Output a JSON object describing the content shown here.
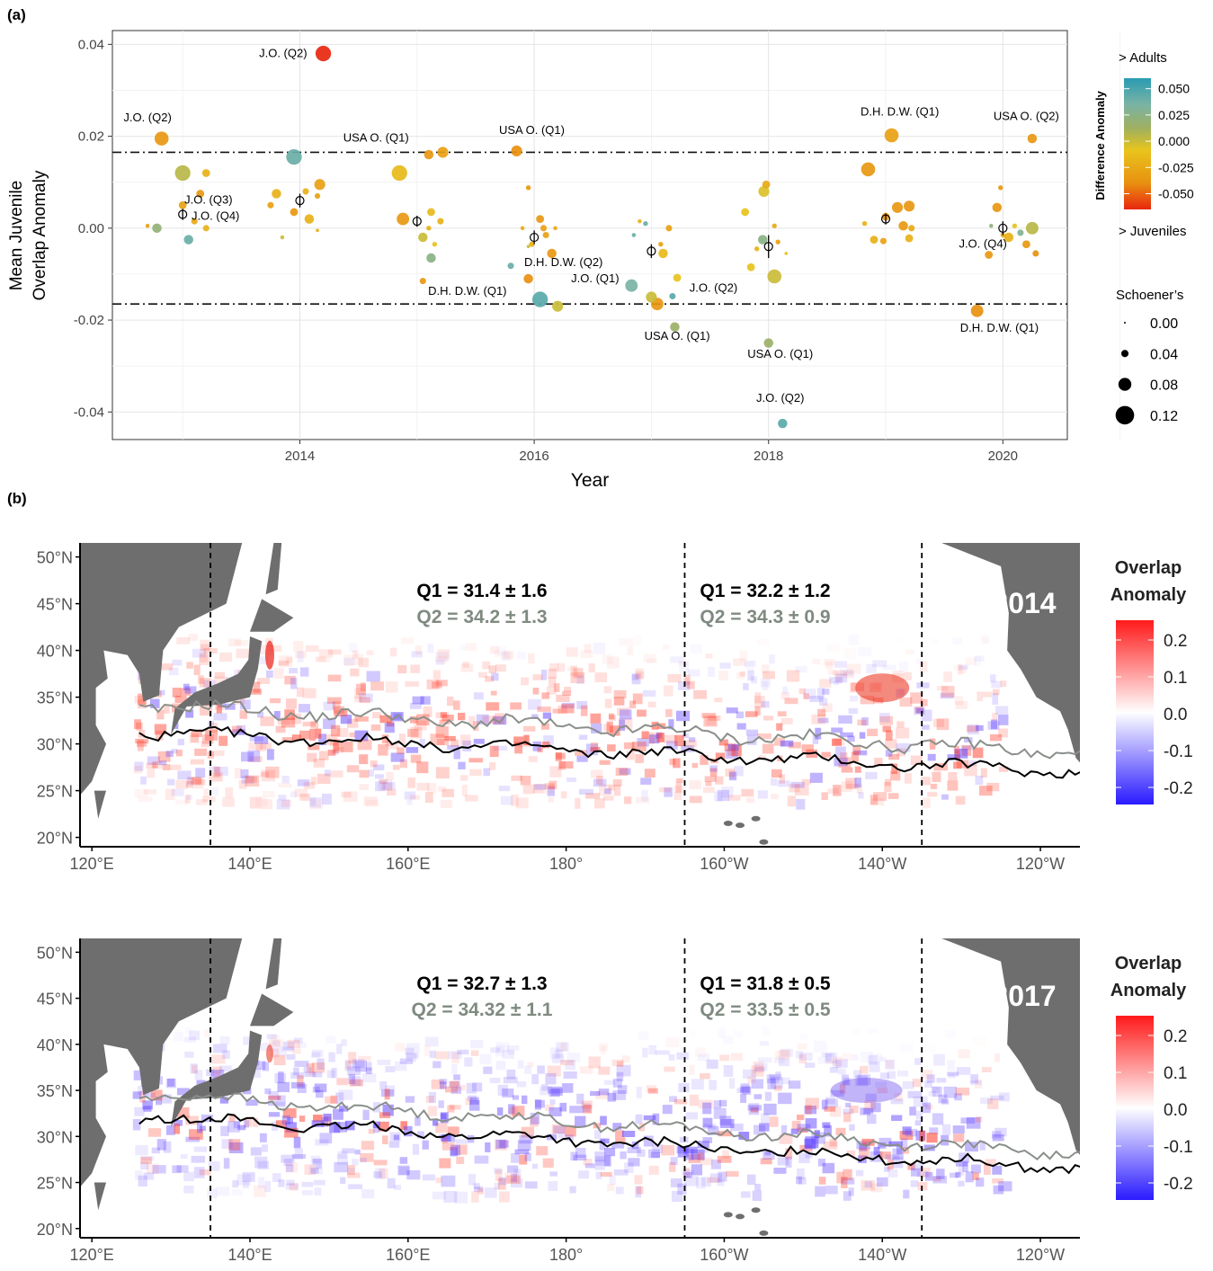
{
  "panel_a": {
    "label": "(a)",
    "chart_data": {
      "type": "scatter",
      "xlabel": "Year",
      "ylabel_lines": [
        "Mean Juvenile",
        "Overlap Anomaly"
      ],
      "xlim": [
        2012.4,
        2020.55
      ],
      "ylim": [
        -0.046,
        0.043
      ],
      "x_ticks": [
        2014,
        2016,
        2018,
        2020
      ],
      "y_ticks": [
        -0.04,
        -0.02,
        0.0,
        0.02,
        0.04
      ],
      "x_tick_labels": [
        "2014",
        "2016",
        "2018",
        "2020"
      ],
      "y_tick_labels": [
        "-0.04",
        "-0.02",
        "0.00",
        "0.02",
        "0.04"
      ],
      "threshold_lines": [
        0.0165,
        -0.0165
      ],
      "grid": true,
      "color_scale": {
        "title": "Difference Anomaly",
        "top_label": "> Adults",
        "bottom_label": "> Juveniles",
        "range": [
          -0.065,
          0.06
        ],
        "stops": [
          "#e8260f",
          "#e89010",
          "#e8c41c",
          "#9fb060",
          "#7ab3a4",
          "#2a9bb3"
        ],
        "tick_values": [
          0.05,
          0.025,
          0.0,
          -0.025,
          -0.05
        ],
        "tick_labels": [
          "0.050",
          "0.025",
          "0.000",
          "-0.025",
          "-0.050"
        ]
      },
      "size_legend": {
        "title": "Schoener’s",
        "values": [
          0.0,
          0.04,
          0.08,
          0.12
        ],
        "labels": [
          "0.00",
          "0.04",
          "0.08",
          "0.12"
        ]
      },
      "year_means": [
        {
          "x": 2013.0,
          "y": 0.003,
          "err": 0.0012
        },
        {
          "x": 2014.0,
          "y": 0.006,
          "err": 0.0015
        },
        {
          "x": 2015.0,
          "y": 0.0015,
          "err": 0.0012
        },
        {
          "x": 2016.0,
          "y": -0.002,
          "err": 0.0015
        },
        {
          "x": 2017.0,
          "y": -0.005,
          "err": 0.0015
        },
        {
          "x": 2018.0,
          "y": -0.004,
          "err": 0.0025
        },
        {
          "x": 2019.0,
          "y": 0.002,
          "err": 0.0012
        },
        {
          "x": 2020.0,
          "y": 0.0,
          "err": 0.0015
        }
      ],
      "points": [
        {
          "x": 2012.82,
          "y": 0.0195,
          "s": 0.08,
          "c": -0.035
        },
        {
          "x": 2012.78,
          "y": 0.0,
          "s": 0.05,
          "c": 0.02
        },
        {
          "x": 2013.0,
          "y": 0.012,
          "s": 0.09,
          "c": 0.005
        },
        {
          "x": 2013.2,
          "y": 0.012,
          "s": 0.04,
          "c": -0.02
        },
        {
          "x": 2013.15,
          "y": 0.0075,
          "s": 0.04,
          "c": -0.035
        },
        {
          "x": 2013.05,
          "y": -0.0025,
          "s": 0.05,
          "c": 0.04
        },
        {
          "x": 2013.1,
          "y": 0.0015,
          "s": 0.03,
          "c": -0.025
        },
        {
          "x": 2013.2,
          "y": 0.0,
          "s": 0.03,
          "c": -0.02
        },
        {
          "x": 2012.7,
          "y": 0.0005,
          "s": 0.015,
          "c": -0.03
        },
        {
          "x": 2013.0,
          "y": 0.005,
          "s": 0.04,
          "c": -0.03
        },
        {
          "x": 2014.2,
          "y": 0.038,
          "s": 0.09,
          "c": -0.065
        },
        {
          "x": 2013.95,
          "y": 0.0155,
          "s": 0.09,
          "c": 0.04
        },
        {
          "x": 2013.8,
          "y": 0.0075,
          "s": 0.05,
          "c": -0.02
        },
        {
          "x": 2014.05,
          "y": 0.008,
          "s": 0.03,
          "c": -0.02
        },
        {
          "x": 2014.17,
          "y": 0.0095,
          "s": 0.06,
          "c": -0.03
        },
        {
          "x": 2014.15,
          "y": 0.007,
          "s": 0.025,
          "c": -0.03
        },
        {
          "x": 2013.95,
          "y": 0.0035,
          "s": 0.04,
          "c": -0.035
        },
        {
          "x": 2014.08,
          "y": 0.002,
          "s": 0.05,
          "c": -0.02
        },
        {
          "x": 2013.85,
          "y": -0.002,
          "s": 0.015,
          "c": 0.0
        },
        {
          "x": 2014.15,
          "y": -0.0005,
          "s": 0.01,
          "c": -0.02
        },
        {
          "x": 2013.75,
          "y": 0.005,
          "s": 0.03,
          "c": -0.03
        },
        {
          "x": 2014.85,
          "y": 0.012,
          "s": 0.09,
          "c": -0.015
        },
        {
          "x": 2014.88,
          "y": 0.002,
          "s": 0.07,
          "c": -0.035
        },
        {
          "x": 2015.1,
          "y": 0.016,
          "s": 0.05,
          "c": -0.035
        },
        {
          "x": 2015.22,
          "y": 0.0165,
          "s": 0.06,
          "c": -0.03
        },
        {
          "x": 2015.12,
          "y": 0.0035,
          "s": 0.04,
          "c": -0.015
        },
        {
          "x": 2015.05,
          "y": -0.002,
          "s": 0.05,
          "c": 0.0
        },
        {
          "x": 2015.12,
          "y": -0.0065,
          "s": 0.05,
          "c": 0.025
        },
        {
          "x": 2015.2,
          "y": 0.0015,
          "s": 0.03,
          "c": -0.02
        },
        {
          "x": 2015.15,
          "y": -0.0035,
          "s": 0.02,
          "c": -0.01
        },
        {
          "x": 2015.05,
          "y": -0.0115,
          "s": 0.03,
          "c": -0.035
        },
        {
          "x": 2015.1,
          "y": 0.0,
          "s": 0.02,
          "c": -0.02
        },
        {
          "x": 2015.85,
          "y": 0.0168,
          "s": 0.06,
          "c": -0.04
        },
        {
          "x": 2015.95,
          "y": 0.0088,
          "s": 0.02,
          "c": -0.035
        },
        {
          "x": 2016.05,
          "y": 0.002,
          "s": 0.04,
          "c": -0.035
        },
        {
          "x": 2016.08,
          "y": 0.0,
          "s": 0.03,
          "c": -0.03
        },
        {
          "x": 2015.95,
          "y": -0.011,
          "s": 0.05,
          "c": -0.04
        },
        {
          "x": 2016.05,
          "y": -0.0155,
          "s": 0.09,
          "c": 0.045
        },
        {
          "x": 2016.2,
          "y": -0.017,
          "s": 0.06,
          "c": 0.0
        },
        {
          "x": 2016.15,
          "y": -0.0055,
          "s": 0.05,
          "c": -0.035
        },
        {
          "x": 2015.8,
          "y": -0.0082,
          "s": 0.03,
          "c": 0.04
        },
        {
          "x": 2015.98,
          "y": -0.0035,
          "s": 0.025,
          "c": -0.02
        },
        {
          "x": 2016.1,
          "y": -0.0015,
          "s": 0.03,
          "c": -0.03
        },
        {
          "x": 2015.9,
          "y": 0.0,
          "s": 0.015,
          "c": -0.025
        },
        {
          "x": 2016.18,
          "y": 0.0,
          "s": 0.015,
          "c": -0.025
        },
        {
          "x": 2015.95,
          "y": -0.004,
          "s": 0.01,
          "c": 0.0
        },
        {
          "x": 2016.83,
          "y": -0.0125,
          "s": 0.07,
          "c": 0.035
        },
        {
          "x": 2016.95,
          "y": 0.001,
          "s": 0.02,
          "c": 0.04
        },
        {
          "x": 2016.9,
          "y": 0.0015,
          "s": 0.015,
          "c": -0.02
        },
        {
          "x": 2017.1,
          "y": -0.0055,
          "s": 0.05,
          "c": -0.015
        },
        {
          "x": 2017.15,
          "y": 0.0,
          "s": 0.03,
          "c": -0.03
        },
        {
          "x": 2017.05,
          "y": -0.0165,
          "s": 0.07,
          "c": -0.035
        },
        {
          "x": 2017.0,
          "y": -0.015,
          "s": 0.06,
          "c": 0.0
        },
        {
          "x": 2017.18,
          "y": -0.0148,
          "s": 0.03,
          "c": 0.045
        },
        {
          "x": 2017.2,
          "y": -0.0215,
          "s": 0.05,
          "c": 0.015
        },
        {
          "x": 2017.22,
          "y": -0.0108,
          "s": 0.04,
          "c": -0.01
        },
        {
          "x": 2016.85,
          "y": -0.0015,
          "s": 0.015,
          "c": 0.04
        },
        {
          "x": 2017.08,
          "y": -0.0035,
          "s": 0.02,
          "c": -0.03
        },
        {
          "x": 2017.8,
          "y": 0.0035,
          "s": 0.04,
          "c": -0.01
        },
        {
          "x": 2017.98,
          "y": 0.0095,
          "s": 0.04,
          "c": -0.025
        },
        {
          "x": 2017.96,
          "y": 0.008,
          "s": 0.06,
          "c": -0.005
        },
        {
          "x": 2018.05,
          "y": 0.0005,
          "s": 0.02,
          "c": -0.025
        },
        {
          "x": 2017.95,
          "y": -0.0025,
          "s": 0.05,
          "c": 0.025
        },
        {
          "x": 2018.05,
          "y": -0.0105,
          "s": 0.08,
          "c": 0.0
        },
        {
          "x": 2017.85,
          "y": -0.0085,
          "s": 0.04,
          "c": -0.01
        },
        {
          "x": 2018.0,
          "y": -0.025,
          "s": 0.05,
          "c": 0.015
        },
        {
          "x": 2018.12,
          "y": -0.0425,
          "s": 0.05,
          "c": 0.045
        },
        {
          "x": 2018.15,
          "y": -0.0055,
          "s": 0.01,
          "c": -0.01
        },
        {
          "x": 2017.9,
          "y": -0.0045,
          "s": 0.02,
          "c": -0.02
        },
        {
          "x": 2018.08,
          "y": -0.003,
          "s": 0.02,
          "c": -0.03
        },
        {
          "x": 2019.05,
          "y": 0.0202,
          "s": 0.08,
          "c": -0.03
        },
        {
          "x": 2018.85,
          "y": 0.0128,
          "s": 0.08,
          "c": -0.035
        },
        {
          "x": 2019.1,
          "y": 0.0045,
          "s": 0.06,
          "c": -0.035
        },
        {
          "x": 2019.2,
          "y": 0.0048,
          "s": 0.06,
          "c": -0.035
        },
        {
          "x": 2019.0,
          "y": 0.0025,
          "s": 0.04,
          "c": -0.035
        },
        {
          "x": 2019.15,
          "y": 0.0005,
          "s": 0.05,
          "c": -0.035
        },
        {
          "x": 2018.9,
          "y": -0.0025,
          "s": 0.04,
          "c": -0.02
        },
        {
          "x": 2019.2,
          "y": -0.0022,
          "s": 0.04,
          "c": -0.02
        },
        {
          "x": 2018.82,
          "y": 0.001,
          "s": 0.02,
          "c": -0.02
        },
        {
          "x": 2018.98,
          "y": -0.0028,
          "s": 0.03,
          "c": -0.03
        },
        {
          "x": 2019.22,
          "y": 0.0,
          "s": 0.03,
          "c": -0.025
        },
        {
          "x": 2020.25,
          "y": 0.0195,
          "s": 0.05,
          "c": -0.035
        },
        {
          "x": 2019.98,
          "y": 0.0088,
          "s": 0.02,
          "c": -0.035
        },
        {
          "x": 2019.95,
          "y": 0.0045,
          "s": 0.05,
          "c": -0.035
        },
        {
          "x": 2020.25,
          "y": 0.0,
          "s": 0.07,
          "c": 0.005
        },
        {
          "x": 2020.05,
          "y": -0.002,
          "s": 0.05,
          "c": -0.02
        },
        {
          "x": 2020.2,
          "y": -0.0035,
          "s": 0.04,
          "c": -0.035
        },
        {
          "x": 2020.28,
          "y": -0.0055,
          "s": 0.03,
          "c": -0.04
        },
        {
          "x": 2019.88,
          "y": -0.0058,
          "s": 0.04,
          "c": -0.035
        },
        {
          "x": 2019.78,
          "y": -0.018,
          "s": 0.07,
          "c": -0.04
        },
        {
          "x": 2020.15,
          "y": -0.001,
          "s": 0.03,
          "c": 0.03
        },
        {
          "x": 2020.1,
          "y": 0.0005,
          "s": 0.02,
          "c": -0.01
        },
        {
          "x": 2019.9,
          "y": 0.0005,
          "s": 0.015,
          "c": 0.02
        },
        {
          "x": 2020.0,
          "y": -0.0015,
          "s": 0.02,
          "c": -0.025
        }
      ],
      "annotations": [
        {
          "text": "J.O. (Q2)",
          "x": 2014.2,
          "y": 0.038,
          "anchor": "end",
          "dx": -18,
          "dy": 4
        },
        {
          "text": "J.O. (Q2)",
          "x": 2012.7,
          "y": 0.0232,
          "anchor": "middle",
          "dx": 0,
          "dy": 0
        },
        {
          "text": "USA O. (Q1)",
          "x": 2014.65,
          "y": 0.0188,
          "anchor": "middle",
          "dx": 0,
          "dy": 0
        },
        {
          "text": "USA O. (Q1)",
          "x": 2015.98,
          "y": 0.0205,
          "anchor": "middle",
          "dx": 0,
          "dy": 0
        },
        {
          "text": "J.O. (Q3)",
          "x": 2013.22,
          "y": 0.0053,
          "anchor": "middle",
          "dx": 0,
          "dy": 0
        },
        {
          "text": "J.O. (Q4)",
          "x": 2013.28,
          "y": 0.0018,
          "anchor": "middle",
          "dx": 0,
          "dy": 0
        },
        {
          "text": "D.H. D.W. (Q2)",
          "x": 2016.25,
          "y": -0.0082,
          "anchor": "middle",
          "dx": 0,
          "dy": 0
        },
        {
          "text": "D.H. D.W. (Q1)",
          "x": 2015.43,
          "y": -0.0145,
          "anchor": "middle",
          "dx": 0,
          "dy": 0
        },
        {
          "text": "J.O. (Q1)",
          "x": 2016.52,
          "y": -0.0118,
          "anchor": "middle",
          "dx": 0,
          "dy": 0
        },
        {
          "text": "J.O. (Q2)",
          "x": 2017.53,
          "y": -0.0138,
          "anchor": "middle",
          "dx": 0,
          "dy": 0
        },
        {
          "text": "USA O. (Q1)",
          "x": 2017.22,
          "y": -0.0243,
          "anchor": "middle",
          "dx": 0,
          "dy": 0
        },
        {
          "text": "USA O. (Q1)",
          "x": 2018.1,
          "y": -0.0282,
          "anchor": "middle",
          "dx": 0,
          "dy": 0
        },
        {
          "text": "J.O. (Q2)",
          "x": 2018.1,
          "y": -0.0378,
          "anchor": "middle",
          "dx": 0,
          "dy": 0
        },
        {
          "text": "D.H. D.W. (Q1)",
          "x": 2019.12,
          "y": 0.0245,
          "anchor": "middle",
          "dx": 0,
          "dy": 0
        },
        {
          "text": "USA O. (Q2)",
          "x": 2020.2,
          "y": 0.0235,
          "anchor": "middle",
          "dx": 0,
          "dy": 0
        },
        {
          "text": "J.O. (Q4)",
          "x": 2019.83,
          "y": -0.0042,
          "anchor": "middle",
          "dx": 0,
          "dy": 0
        },
        {
          "text": "D.H. D.W. (Q1)",
          "x": 2019.97,
          "y": -0.0225,
          "anchor": "middle",
          "dx": 0,
          "dy": 0
        }
      ]
    }
  },
  "panel_b": {
    "label": "(b)",
    "lat_ticks": [
      "50°N",
      "45°N",
      "40°N",
      "35°N",
      "30°N",
      "25°N",
      "20°N"
    ],
    "lon_ticks": [
      "120°E",
      "140°E",
      "160°E",
      "180°",
      "160°W",
      "140°W",
      "120°W"
    ],
    "colorbar": {
      "title_lines": [
        "Overlap",
        "Anomaly"
      ],
      "tick_labels": [
        "0.2",
        "0.1",
        "0.0",
        "-0.1",
        "-0.2"
      ],
      "stops": [
        "#ff1a1a",
        "#ffffff",
        "#2a1aff"
      ]
    },
    "maps": [
      {
        "year": "2014",
        "west_q1": "Q1 = 31.4 ± 1.6",
        "west_q2": "Q2 = 34.2 ± 1.3",
        "east_q1": "Q1 = 32.2 ± 1.2",
        "east_q2": "Q2 = 34.3 ± 0.9"
      },
      {
        "year": "2017",
        "west_q1": "Q1 = 32.7 ± 1.3",
        "west_q2": "Q2 = 34.32 ± 1.1",
        "east_q1": "Q1 = 31.8 ± 0.5",
        "east_q2": "Q2 = 33.5 ± 0.5"
      }
    ],
    "colors": {
      "land": "#6e6e6e",
      "q1_line": "#000000",
      "q2_line": "#8a8f8a",
      "q2_text": "#7f8a80"
    }
  }
}
